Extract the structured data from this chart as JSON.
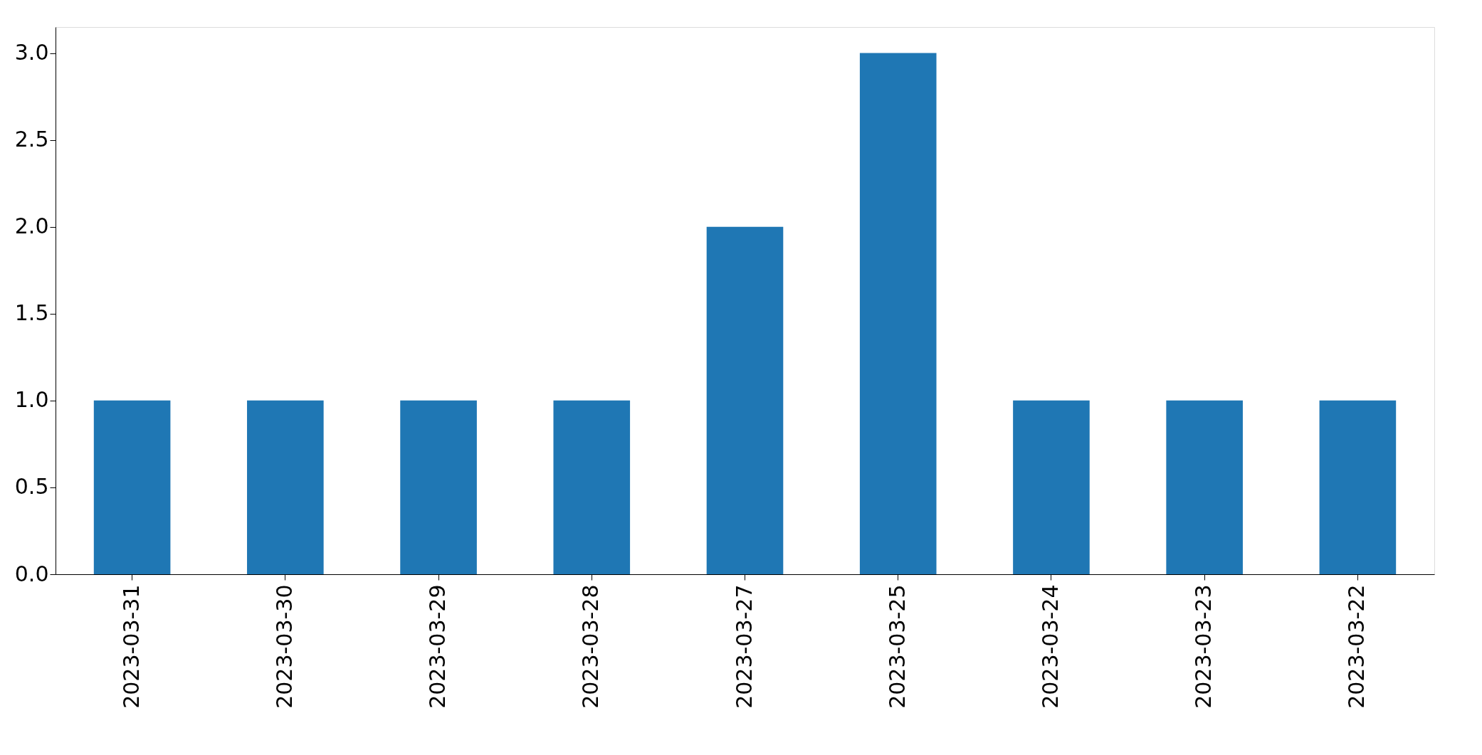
{
  "chart_data": {
    "type": "bar",
    "categories": [
      "2023-03-31",
      "2023-03-30",
      "2023-03-29",
      "2023-03-28",
      "2023-03-27",
      "2023-03-25",
      "2023-03-24",
      "2023-03-23",
      "2023-03-22"
    ],
    "values": [
      1,
      1,
      1,
      1,
      2,
      3,
      1,
      1,
      1
    ],
    "color": "#1f77b4",
    "ylim": [
      0,
      3.15
    ],
    "yticks": [
      {
        "value": 0,
        "label": "0.0"
      },
      {
        "value": 0.5,
        "label": "0.5"
      },
      {
        "value": 1,
        "label": "1.0"
      },
      {
        "value": 1.5,
        "label": "1.5"
      },
      {
        "value": 2,
        "label": "2.0"
      },
      {
        "value": 2.5,
        "label": "2.5"
      },
      {
        "value": 3,
        "label": "3.0"
      }
    ],
    "grid": false
  }
}
